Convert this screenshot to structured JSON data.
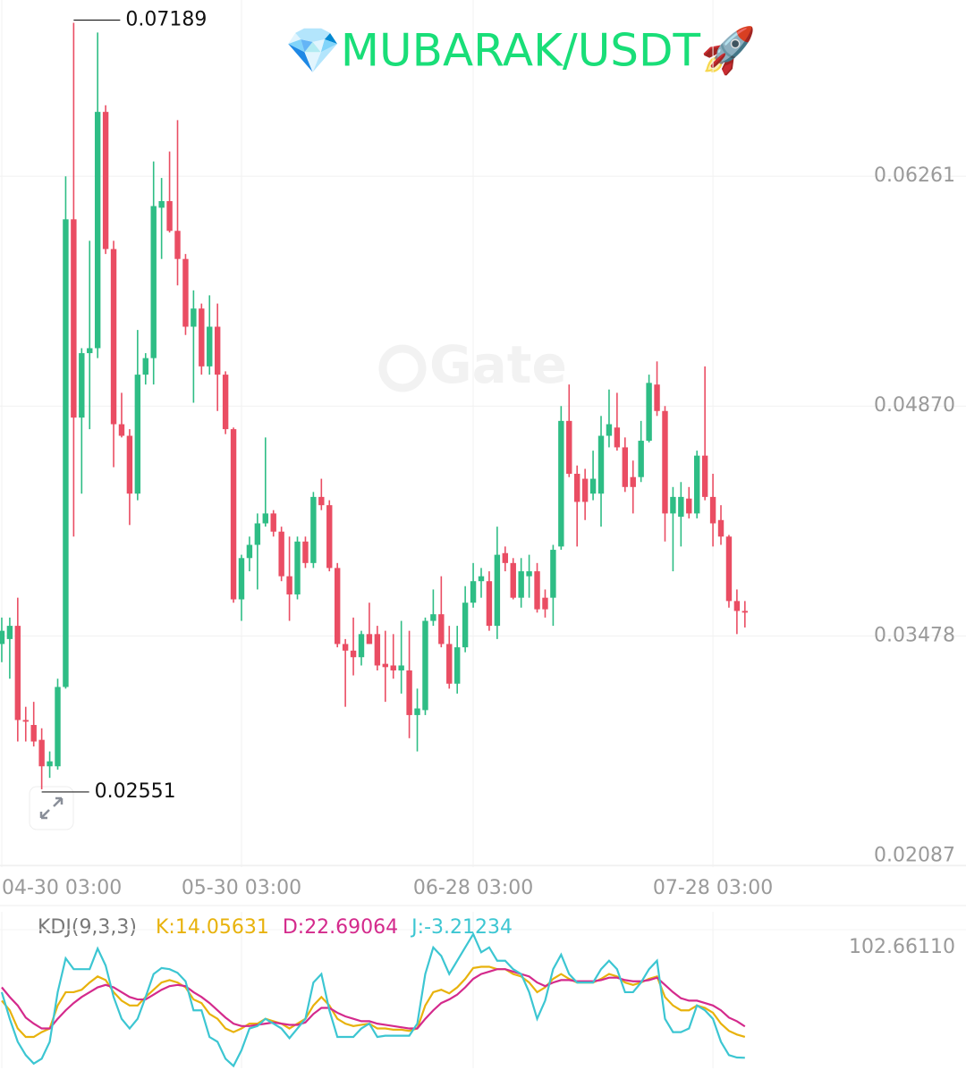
{
  "chart_data": [
    {
      "type": "candlestick",
      "title": "💎MUBARAK/USDT🚀",
      "watermark": "Gate",
      "up_color": "#2ebd85",
      "down_color": "#ea4d63",
      "x": [
        0,
        1,
        2,
        3,
        4,
        5,
        6,
        7,
        8,
        9,
        10,
        11,
        12,
        13,
        14,
        15,
        16,
        17,
        18,
        19,
        20,
        21,
        22,
        23,
        24,
        25,
        26,
        27,
        28,
        29,
        30,
        31,
        32,
        33,
        34,
        35,
        36,
        37,
        38,
        39,
        40,
        41,
        42,
        43,
        44,
        45,
        46,
        47,
        48,
        49,
        50,
        51,
        52,
        53,
        54,
        55,
        56,
        57,
        58,
        59,
        60,
        61,
        62,
        63,
        64,
        65,
        66,
        67,
        68,
        69,
        70,
        71,
        72,
        73,
        74,
        75,
        76,
        77,
        78,
        79,
        80,
        81,
        82,
        83,
        84,
        85,
        86,
        87,
        88,
        89,
        90,
        91,
        92,
        93
      ],
      "open": [
        0.0343,
        0.0346,
        0.0354,
        0.0297,
        0.0294,
        0.0285,
        0.0269,
        0.0269,
        0.0317,
        0.06,
        0.048,
        0.0519,
        0.0522,
        0.0665,
        0.0582,
        0.0476,
        0.0469,
        0.0434,
        0.0506,
        0.0516,
        0.0607,
        0.0611,
        0.0593,
        0.0576,
        0.0535,
        0.0546,
        0.0511,
        0.0535,
        0.0506,
        0.0473,
        0.037,
        0.0395,
        0.0403,
        0.0416,
        0.0422,
        0.0411,
        0.0384,
        0.0373,
        0.0405,
        0.0392,
        0.0432,
        0.0427,
        0.0389,
        0.0343,
        0.0339,
        0.0335,
        0.0349,
        0.0349,
        0.0331,
        0.033,
        0.0327,
        0.0327,
        0.03,
        0.0303,
        0.0357,
        0.0361,
        0.0343,
        0.0319,
        0.0341,
        0.0368,
        0.0381,
        0.0381,
        0.0354,
        0.0398,
        0.0392,
        0.0371,
        0.0384,
        0.0387,
        0.0371,
        0.0371,
        0.0402,
        0.0478,
        0.0446,
        0.0443,
        0.0434,
        0.0434,
        0.0469,
        0.0474,
        0.0462,
        0.0444,
        0.0444,
        0.0466,
        0.05,
        0.0484,
        0.0422,
        0.042,
        0.0431,
        0.0422,
        0.0457,
        0.0432,
        0.0418,
        0.0408,
        0.0369,
        0.0363
      ],
      "high": [
        0.0359,
        0.0359,
        0.0371,
        0.0305,
        0.0308,
        0.0292,
        0.0278,
        0.0322,
        0.0626,
        0.07189,
        0.0522,
        0.0587,
        0.0713,
        0.0669,
        0.0587,
        0.0495,
        0.0473,
        0.0533,
        0.0519,
        0.0635,
        0.0625,
        0.0641,
        0.066,
        0.0579,
        0.0557,
        0.0549,
        0.0554,
        0.0549,
        0.0508,
        0.0474,
        0.0397,
        0.0408,
        0.0422,
        0.0468,
        0.0424,
        0.0414,
        0.0408,
        0.0408,
        0.0408,
        0.0435,
        0.0443,
        0.043,
        0.0392,
        0.0346,
        0.0359,
        0.0351,
        0.0368,
        0.0354,
        0.0351,
        0.0349,
        0.0357,
        0.0351,
        0.0316,
        0.0359,
        0.0376,
        0.0384,
        0.0354,
        0.0354,
        0.0378,
        0.0392,
        0.0389,
        0.0387,
        0.0414,
        0.0402,
        0.0395,
        0.0395,
        0.0397,
        0.0392,
        0.0376,
        0.0403,
        0.0487,
        0.05,
        0.0451,
        0.0449,
        0.046,
        0.0481,
        0.0497,
        0.0495,
        0.0468,
        0.0454,
        0.0478,
        0.0506,
        0.0514,
        0.0487,
        0.0438,
        0.0441,
        0.0438,
        0.046,
        0.0511,
        0.0446,
        0.0427,
        0.0409,
        0.0376,
        0.0369
      ],
      "low": [
        0.0332,
        0.0322,
        0.0284,
        0.0284,
        0.0281,
        0.02551,
        0.0262,
        0.0267,
        0.0316,
        0.0408,
        0.0434,
        0.0473,
        0.0516,
        0.0579,
        0.045,
        0.0468,
        0.0415,
        0.043,
        0.05,
        0.05,
        0.0576,
        0.0592,
        0.056,
        0.053,
        0.0489,
        0.0506,
        0.0506,
        0.0484,
        0.047,
        0.0368,
        0.0357,
        0.0387,
        0.0376,
        0.0414,
        0.0408,
        0.0381,
        0.0357,
        0.037,
        0.0389,
        0.0389,
        0.0424,
        0.0387,
        0.0341,
        0.0305,
        0.0324,
        0.033,
        0.0343,
        0.0327,
        0.0308,
        0.0322,
        0.0313,
        0.0286,
        0.0278,
        0.03,
        0.0354,
        0.0341,
        0.0316,
        0.0313,
        0.0338,
        0.0365,
        0.0371,
        0.0351,
        0.0346,
        0.0387,
        0.037,
        0.0365,
        0.0371,
        0.0362,
        0.0359,
        0.0354,
        0.04,
        0.0444,
        0.0402,
        0.0418,
        0.043,
        0.0414,
        0.0462,
        0.046,
        0.0435,
        0.0422,
        0.0441,
        0.0465,
        0.0481,
        0.0405,
        0.0387,
        0.0402,
        0.0419,
        0.0419,
        0.043,
        0.0402,
        0.0403,
        0.0365,
        0.0349,
        0.0353
      ],
      "close": [
        0.0351,
        0.0354,
        0.0297,
        0.0296,
        0.0284,
        0.0269,
        0.0272,
        0.0317,
        0.06,
        0.048,
        0.0519,
        0.0522,
        0.0665,
        0.0582,
        0.0476,
        0.0469,
        0.0434,
        0.0506,
        0.0516,
        0.0608,
        0.0611,
        0.0593,
        0.0576,
        0.0535,
        0.0546,
        0.0511,
        0.0535,
        0.0506,
        0.0473,
        0.037,
        0.0395,
        0.0403,
        0.0416,
        0.0422,
        0.0411,
        0.0384,
        0.0373,
        0.0405,
        0.0392,
        0.0432,
        0.0427,
        0.0389,
        0.0343,
        0.0339,
        0.0335,
        0.0349,
        0.0343,
        0.033,
        0.0329,
        0.0327,
        0.033,
        0.03,
        0.0304,
        0.0357,
        0.0361,
        0.0343,
        0.0319,
        0.0341,
        0.0368,
        0.0381,
        0.0384,
        0.0354,
        0.0397,
        0.0392,
        0.0371,
        0.0387,
        0.0387,
        0.0364,
        0.0364,
        0.04,
        0.0478,
        0.0446,
        0.0429,
        0.0429,
        0.0443,
        0.0469,
        0.0476,
        0.0462,
        0.0438,
        0.0438,
        0.0466,
        0.0501,
        0.0484,
        0.0422,
        0.0432,
        0.0432,
        0.0422,
        0.0457,
        0.0432,
        0.0416,
        0.0408,
        0.0369,
        0.0363,
        0.0362
      ],
      "xlim": [
        -0.22,
        106.9
      ],
      "xticks": [
        {
          "value": 0,
          "label": "04-30 03:00"
        },
        {
          "value": 30,
          "label": "05-30 03:00"
        },
        {
          "value": 59,
          "label": "06-28 03:00"
        },
        {
          "value": 89,
          "label": "07-28 03:00"
        }
      ],
      "ylim": [
        0.0208,
        0.07327
      ],
      "yticks": [
        0.02087,
        0.03478,
        {
          "value": 0.0487,
          "label": "0.04870"
        },
        0.06261
      ],
      "grid": true
    },
    {
      "type": "line",
      "indicator": "KDJ(9,3,3)",
      "ylim": [
        -11.85,
        102.6611
      ],
      "yticks": [
        {
          "value": 102.6611,
          "label": "102.66110"
        }
      ],
      "series": [
        {
          "name": "K:",
          "color": "#e8b20c",
          "values": [
            44,
            36,
            21,
            14,
            14,
            18,
            21,
            40,
            51,
            51,
            53,
            59,
            64,
            61,
            51,
            44,
            40,
            40,
            47,
            53,
            59,
            61,
            59,
            55,
            45,
            42,
            33,
            29,
            21,
            18,
            21,
            25,
            25,
            29,
            27,
            25,
            21,
            25,
            29,
            40,
            47,
            40,
            29,
            25,
            23,
            24,
            25,
            21,
            21,
            20,
            20,
            19,
            21,
            40,
            51,
            53,
            50,
            55,
            62,
            71,
            72,
            72,
            70,
            70,
            66,
            64,
            59,
            51,
            55,
            62,
            66,
            62,
            59,
            59,
            59,
            62,
            66,
            64,
            59,
            57,
            59,
            62,
            64,
            47,
            40,
            36,
            36,
            40,
            38,
            34,
            25,
            19,
            16,
            14.05631
          ]
        },
        {
          "name": "D:",
          "color": "#d42a8c",
          "values": [
            55,
            47,
            40,
            30,
            25,
            21,
            21,
            29,
            36,
            42,
            47,
            51,
            55,
            57,
            55,
            51,
            47,
            45,
            45,
            49,
            53,
            56,
            57,
            56,
            51,
            47,
            42,
            36,
            30,
            25,
            23,
            23,
            24,
            25,
            26,
            25,
            24,
            24,
            26,
            33,
            38,
            38,
            34,
            31,
            29,
            27,
            27,
            25,
            24,
            23,
            22,
            21,
            21,
            29,
            36,
            42,
            45,
            49,
            55,
            62,
            66,
            68,
            70,
            70,
            68,
            66,
            64,
            59,
            56,
            59,
            61,
            61,
            60,
            60,
            60,
            61,
            63,
            63,
            61,
            60,
            60,
            61,
            63,
            57,
            51,
            46,
            44,
            44,
            42,
            40,
            36,
            30,
            27,
            22.69064
          ]
        },
        {
          "name": "J:",
          "color": "#3cc6d2",
          "values": [
            51,
            29,
            10,
            -1,
            -8,
            -4,
            10,
            51,
            79,
            70,
            70,
            70,
            87,
            73,
            47,
            29,
            21,
            29,
            47,
            66,
            71,
            70,
            67,
            60,
            36,
            36,
            14,
            10,
            -4,
            -10,
            3,
            21,
            23,
            29,
            25,
            21,
            13,
            21,
            29,
            59,
            66,
            36,
            14,
            14,
            14,
            21,
            25,
            14,
            15,
            15,
            15,
            15,
            25,
            66,
            88,
            81,
            66,
            77,
            88,
            99,
            84,
            88,
            77,
            77,
            70,
            66,
            51,
            29,
            44,
            70,
            82,
            66,
            59,
            59,
            59,
            70,
            77,
            70,
            51,
            51,
            59,
            70,
            77,
            29,
            18,
            18,
            21,
            40,
            36,
            29,
            10,
            -1,
            -3,
            -3.21234
          ]
        }
      ]
    }
  ]
}
